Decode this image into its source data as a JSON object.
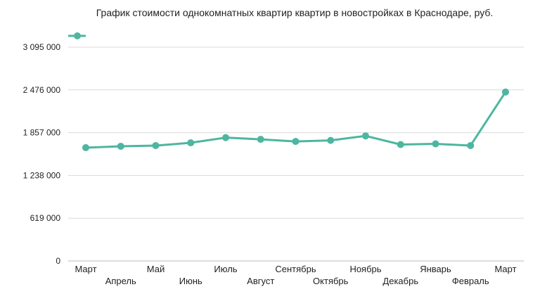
{
  "chart_data": {
    "type": "line",
    "title": "График стоимости однокомнатных квартир квартир в новостройках в Краснодаре, руб.",
    "xlabel": "",
    "ylabel": "",
    "categories": [
      "Март",
      "Апрель",
      "Май",
      "Июнь",
      "Июль",
      "Август",
      "Сентябрь",
      "Октябрь",
      "Ноябрь",
      "Декабрь",
      "Январь",
      "Февраль",
      "Март"
    ],
    "series": [
      {
        "name": "",
        "color": "#4db6a0",
        "values": [
          1640000,
          1660000,
          1670000,
          1710000,
          1785000,
          1760000,
          1730000,
          1745000,
          1810000,
          1685000,
          1695000,
          1670000,
          2445000
        ]
      }
    ],
    "yticks": [
      0,
      619000,
      1238000,
      1857000,
      2476000,
      3095000
    ],
    "ytick_labels": [
      "0",
      "619 000",
      "1 238 000",
      "1 857 000",
      "2 476 000",
      "3 095 000"
    ],
    "ylim": [
      0,
      3095000
    ],
    "grid": true,
    "legend": "top-left"
  }
}
